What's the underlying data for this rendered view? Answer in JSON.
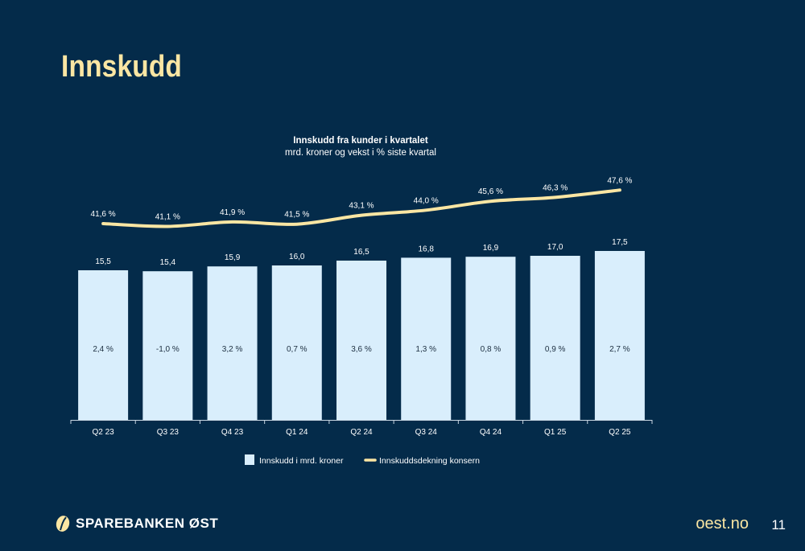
{
  "page": {
    "title": "Innskudd",
    "brand": "SPAREBANKEN ØST",
    "url": "oest.no",
    "page_number": "11"
  },
  "colors": {
    "background": "#042B4A",
    "bar": "#D9EEFC",
    "line": "#FBE6A3",
    "title": "#FBE6A3"
  },
  "chart_data": {
    "type": "bar",
    "title": "Innskudd fra kunder i kvartalet",
    "subtitle": "mrd. kroner og vekst i % siste kvartal",
    "categories": [
      "Q2 23",
      "Q3 23",
      "Q4 23",
      "Q1 24",
      "Q2 24",
      "Q3 24",
      "Q4 24",
      "Q1 25",
      "Q2 25"
    ],
    "series": [
      {
        "name": "Innskudd i mrd. kroner",
        "type": "bar",
        "values": [
          15.5,
          15.4,
          15.9,
          16.0,
          16.5,
          16.8,
          16.9,
          17.0,
          17.5
        ],
        "labels": [
          "15,5",
          "15,4",
          "15,9",
          "16,0",
          "16,5",
          "16,8",
          "16,9",
          "17,0",
          "17,5"
        ],
        "growth_labels": [
          "2,4 %",
          "-1,0 %",
          "3,2 %",
          "0,7 %",
          "3,6 %",
          "1,3 %",
          "0,8 %",
          "0,9 %",
          "2,7 %"
        ]
      },
      {
        "name": "Innskuddsdekning konsern",
        "type": "line",
        "values": [
          41.6,
          41.1,
          41.9,
          41.5,
          43.1,
          44.0,
          45.6,
          46.3,
          47.6
        ],
        "labels": [
          "41,6 %",
          "41,1 %",
          "41,9 %",
          "41,5 %",
          "43,1 %",
          "44,0 %",
          "45,6 %",
          "46,3 %",
          "47,6 %"
        ]
      }
    ],
    "legend_position": "bottom",
    "grid": false
  }
}
